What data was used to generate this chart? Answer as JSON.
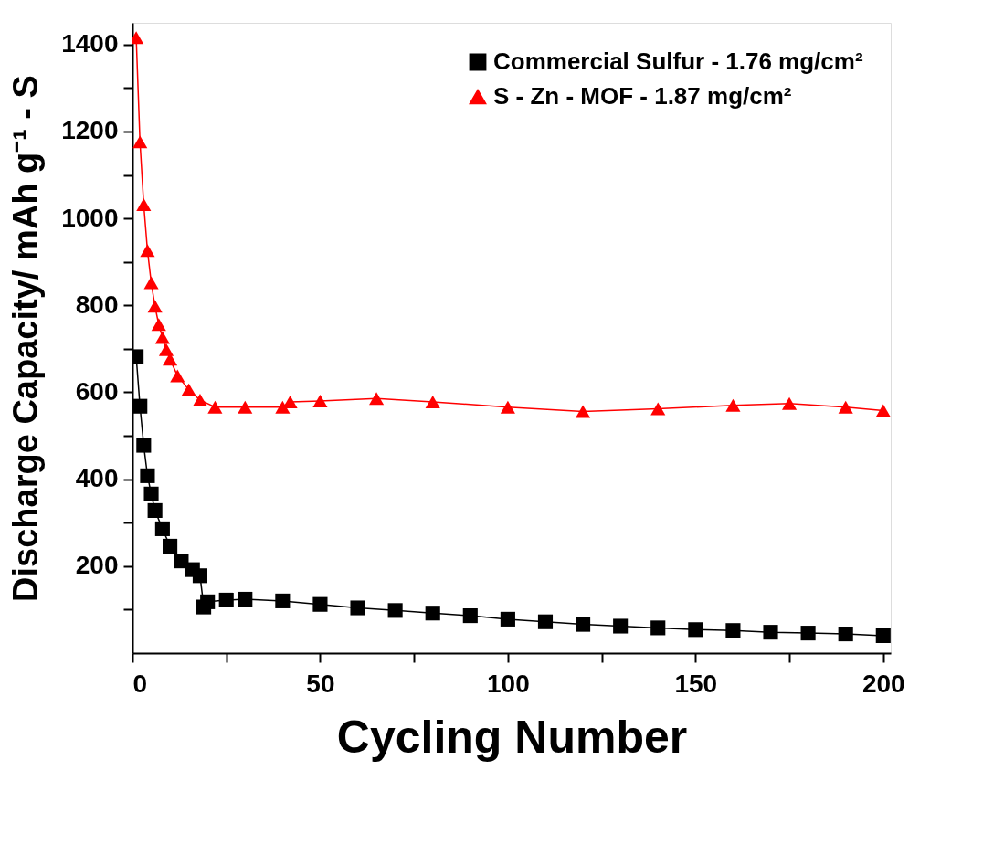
{
  "chart_data": {
    "type": "line",
    "xlabel": "Cycling Number",
    "ylabel": "Discharge Capacity/ mAh g⁻¹ - S",
    "xlim": [
      0,
      202
    ],
    "xticks": [
      0,
      {
        "value": 25,
        "label": null
      },
      50,
      {
        "value": 75,
        "label": null
      },
      100,
      {
        "value": 125,
        "label": null
      },
      150,
      {
        "value": 175,
        "label": null
      },
      200
    ],
    "ylim": [
      0,
      1450
    ],
    "yticks": [
      {
        "value": 100,
        "label": null
      },
      200,
      {
        "value": 300,
        "label": null
      },
      400,
      {
        "value": 500,
        "label": null
      },
      600,
      {
        "value": 700,
        "label": null
      },
      800,
      {
        "value": 900,
        "label": null
      },
      1000,
      {
        "value": 1100,
        "label": null
      },
      1200,
      {
        "value": 1300,
        "label": null
      },
      1400
    ],
    "grid": false,
    "legend": "top right",
    "line_style": "solid",
    "series": [
      {
        "name": "Commercial Sulfur - 1.76 mg/cm²",
        "color": "#000000",
        "marker": "square",
        "x": [
          1,
          2,
          3,
          4,
          5,
          6,
          8,
          10,
          13,
          16,
          18,
          19,
          20,
          25,
          30,
          40,
          50,
          60,
          70,
          80,
          90,
          100,
          110,
          120,
          130,
          140,
          150,
          160,
          170,
          180,
          190,
          200
        ],
        "values": [
          682,
          568,
          478,
          408,
          366,
          328,
          286,
          246,
          212,
          192,
          178,
          106,
          118,
          122,
          124,
          120,
          112,
          104,
          98,
          92,
          86,
          78,
          72,
          66,
          62,
          58,
          54,
          52,
          48,
          46,
          44,
          40
        ]
      },
      {
        "name": "S - Zn - MOF - 1.87 mg/cm²",
        "color": "#ff0000",
        "marker": "triangle",
        "x": [
          1,
          2,
          3,
          4,
          5,
          6,
          7,
          8,
          9,
          10,
          12,
          15,
          18,
          22,
          30,
          40,
          42,
          50,
          65,
          80,
          100,
          120,
          140,
          160,
          175,
          190,
          200
        ],
        "values": [
          1416,
          1176,
          1032,
          926,
          852,
          798,
          756,
          726,
          698,
          676,
          638,
          606,
          582,
          566,
          566,
          566,
          578,
          580,
          586,
          578,
          566,
          556,
          562,
          570,
          574,
          566,
          558
        ]
      }
    ]
  }
}
